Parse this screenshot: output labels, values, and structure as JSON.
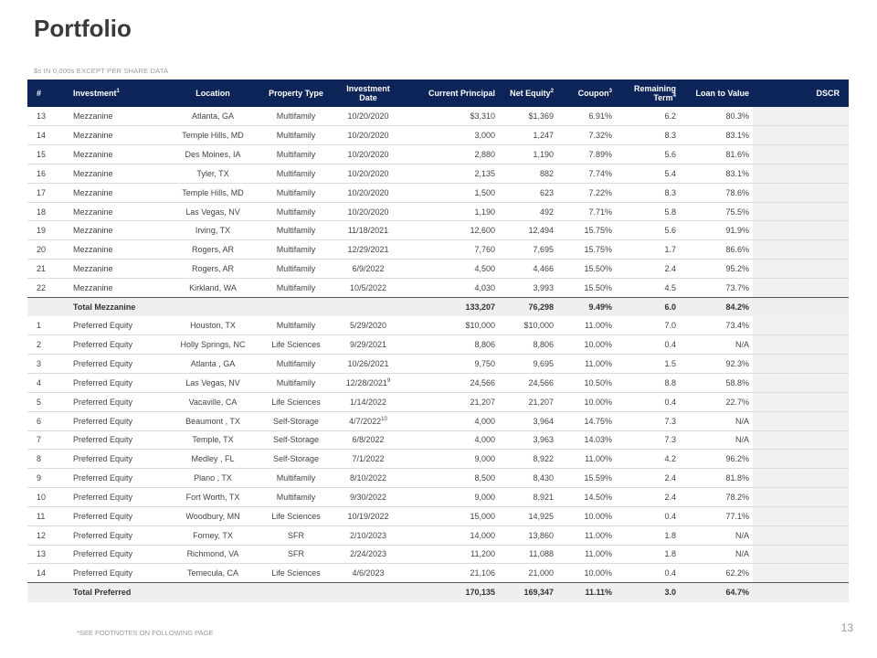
{
  "title": "Portfolio",
  "subtitle": "$s IN 0,000s EXCEPT PER SHARE DATA",
  "headers": {
    "num": "#",
    "investment": "Investment",
    "investment_sup": "1",
    "location": "Location",
    "property_type": "Property Type",
    "investment_date_l1": "Investment",
    "investment_date_l2": "Date",
    "current_principal": "Current Principal",
    "net_equity": "Net Equity",
    "net_equity_sup": "2",
    "coupon": "Coupon",
    "coupon_sup": "3",
    "remaining_term_l1": "Remaining",
    "remaining_term_l2": "Term",
    "remaining_term_sup": "4",
    "loan_to_value": "Loan to Value",
    "dscr": "DSCR"
  },
  "mezzanine_rows": [
    {
      "num": "13",
      "investment": "Mezzanine",
      "location": "Atlanta, GA",
      "type": "Multifamily",
      "date": "10/20/2020",
      "date_sup": "",
      "principal": "$3,310",
      "equity": "$1,369",
      "coupon": "6.91%",
      "term": "6.2",
      "ltv": "80.3%"
    },
    {
      "num": "14",
      "investment": "Mezzanine",
      "location": "Temple Hills, MD",
      "type": "Multifamily",
      "date": "10/20/2020",
      "date_sup": "",
      "principal": "3,000",
      "equity": "1,247",
      "coupon": "7.32%",
      "term": "8.3",
      "ltv": "83.1%"
    },
    {
      "num": "15",
      "investment": "Mezzanine",
      "location": "Des Moines, IA",
      "type": "Multifamily",
      "date": "10/20/2020",
      "date_sup": "",
      "principal": "2,880",
      "equity": "1,190",
      "coupon": "7.89%",
      "term": "5.6",
      "ltv": "81.6%"
    },
    {
      "num": "16",
      "investment": "Mezzanine",
      "location": "Tyler, TX",
      "type": "Multifamily",
      "date": "10/20/2020",
      "date_sup": "",
      "principal": "2,135",
      "equity": "882",
      "coupon": "7.74%",
      "term": "5.4",
      "ltv": "83.1%"
    },
    {
      "num": "17",
      "investment": "Mezzanine",
      "location": "Temple Hills, MD",
      "type": "Multifamily",
      "date": "10/20/2020",
      "date_sup": "",
      "principal": "1,500",
      "equity": "623",
      "coupon": "7.22%",
      "term": "8.3",
      "ltv": "78.6%"
    },
    {
      "num": "18",
      "investment": "Mezzanine",
      "location": "Las Vegas, NV",
      "type": "Multifamily",
      "date": "10/20/2020",
      "date_sup": "",
      "principal": "1,190",
      "equity": "492",
      "coupon": "7.71%",
      "term": "5.8",
      "ltv": "75.5%"
    },
    {
      "num": "19",
      "investment": "Mezzanine",
      "location": "Irving, TX",
      "type": "Multifamily",
      "date": "11/18/2021",
      "date_sup": "",
      "principal": "12,600",
      "equity": "12,494",
      "coupon": "15.75%",
      "term": "5.6",
      "ltv": "91.9%"
    },
    {
      "num": "20",
      "investment": "Mezzanine",
      "location": "Rogers, AR",
      "type": "Multifamily",
      "date": "12/29/2021",
      "date_sup": "",
      "principal": "7,760",
      "equity": "7,695",
      "coupon": "15.75%",
      "term": "1.7",
      "ltv": "86.6%"
    },
    {
      "num": "21",
      "investment": "Mezzanine",
      "location": "Rogers, AR",
      "type": "Multifamily",
      "date": "6/9/2022",
      "date_sup": "",
      "principal": "4,500",
      "equity": "4,466",
      "coupon": "15.50%",
      "term": "2.4",
      "ltv": "95.2%"
    },
    {
      "num": "22",
      "investment": "Mezzanine",
      "location": "Kirkland, WA",
      "type": "Multifamily",
      "date": "10/5/2022",
      "date_sup": "",
      "principal": "4,030",
      "equity": "3,993",
      "coupon": "15.50%",
      "term": "4.5",
      "ltv": "73.7%"
    }
  ],
  "total_mezzanine": {
    "label": "Total Mezzanine",
    "principal": "133,207",
    "equity": "76,298",
    "coupon": "9.49%",
    "term": "6.0",
    "ltv": "84.2%"
  },
  "preferred_rows": [
    {
      "num": "1",
      "investment": "Preferred Equity",
      "location": "Houston, TX",
      "type": "Multifamily",
      "date": "5/29/2020",
      "date_sup": "",
      "principal": "$10,000",
      "equity": "$10,000",
      "coupon": "11.00%",
      "term": "7.0",
      "ltv": "73.4%"
    },
    {
      "num": "2",
      "investment": "Preferred Equity",
      "location": "Holly Springs, NC",
      "type": "Life Sciences",
      "date": "9/29/2021",
      "date_sup": "",
      "principal": "8,806",
      "equity": "8,806",
      "coupon": "10.00%",
      "term": "0.4",
      "ltv": "N/A"
    },
    {
      "num": "3",
      "investment": "Preferred Equity",
      "location": "Atlanta , GA",
      "type": "Multifamily",
      "date": "10/26/2021",
      "date_sup": "",
      "principal": "9,750",
      "equity": "9,695",
      "coupon": "11.00%",
      "term": "1.5",
      "ltv": "92.3%"
    },
    {
      "num": "4",
      "investment": "Preferred Equity",
      "location": "Las Vegas, NV",
      "type": "Multifamily",
      "date": "12/28/2021",
      "date_sup": "9",
      "principal": "24,566",
      "equity": "24,566",
      "coupon": "10.50%",
      "term": "8.8",
      "ltv": "58.8%"
    },
    {
      "num": "5",
      "investment": "Preferred Equity",
      "location": "Vacaville, CA",
      "type": "Life Sciences",
      "date": "1/14/2022",
      "date_sup": "",
      "principal": "21,207",
      "equity": "21,207",
      "coupon": "10.00%",
      "term": "0.4",
      "ltv": "22.7%"
    },
    {
      "num": "6",
      "investment": "Preferred Equity",
      "location": "Beaumont , TX",
      "type": "Self-Storage",
      "date": "4/7/2022",
      "date_sup": "10",
      "principal": "4,000",
      "equity": "3,964",
      "coupon": "14.75%",
      "term": "7.3",
      "ltv": "N/A"
    },
    {
      "num": "7",
      "investment": "Preferred Equity",
      "location": "Temple, TX",
      "type": "Self-Storage",
      "date": "6/8/2022",
      "date_sup": "",
      "principal": "4,000",
      "equity": "3,963",
      "coupon": "14.03%",
      "term": "7.3",
      "ltv": "N/A"
    },
    {
      "num": "8",
      "investment": "Preferred Equity",
      "location": "Medley , FL",
      "type": "Self-Storage",
      "date": "7/1/2022",
      "date_sup": "",
      "principal": "9,000",
      "equity": "8,922",
      "coupon": "11.00%",
      "term": "4.2",
      "ltv": "96.2%"
    },
    {
      "num": "9",
      "investment": "Preferred Equity",
      "location": "Plano , TX",
      "type": "Multifamily",
      "date": "8/10/2022",
      "date_sup": "",
      "principal": "8,500",
      "equity": "8,430",
      "coupon": "15.59%",
      "term": "2.4",
      "ltv": "81.8%"
    },
    {
      "num": "10",
      "investment": "Preferred Equity",
      "location": "Fort Worth, TX",
      "type": "Multifamily",
      "date": "9/30/2022",
      "date_sup": "",
      "principal": "9,000",
      "equity": "8,921",
      "coupon": "14.50%",
      "term": "2.4",
      "ltv": "78.2%"
    },
    {
      "num": "11",
      "investment": "Preferred Equity",
      "location": "Woodbury, MN",
      "type": "Life Sciences",
      "date": "10/19/2022",
      "date_sup": "",
      "principal": "15,000",
      "equity": "14,925",
      "coupon": "10.00%",
      "term": "0.4",
      "ltv": "77.1%"
    },
    {
      "num": "12",
      "investment": "Preferred Equity",
      "location": "Forney, TX",
      "type": "SFR",
      "date": "2/10/2023",
      "date_sup": "",
      "principal": "14,000",
      "equity": "13,860",
      "coupon": "11.00%",
      "term": "1.8",
      "ltv": "N/A"
    },
    {
      "num": "13",
      "investment": "Preferred Equity",
      "location": "Richmond, VA",
      "type": "SFR",
      "date": "2/24/2023",
      "date_sup": "",
      "principal": "11,200",
      "equity": "11,088",
      "coupon": "11.00%",
      "term": "1.8",
      "ltv": "N/A"
    },
    {
      "num": "14",
      "investment": "Preferred Equity",
      "location": "Temecula, CA",
      "type": "Life Sciences",
      "date": "4/6/2023",
      "date_sup": "",
      "principal": "21,106",
      "equity": "21,000",
      "coupon": "10.00%",
      "term": "0.4",
      "ltv": "62.2%"
    }
  ],
  "total_preferred": {
    "label": "Total Preferred",
    "principal": "170,135",
    "equity": "169,347",
    "coupon": "11.11%",
    "term": "3.0",
    "ltv": "64.7%"
  },
  "footnote": "*SEE FOOTNOTES ON FOLLOWING PAGE",
  "page_number": "13",
  "colors": {
    "header_bg": "#0d2458",
    "header_text": "#ffffff",
    "total_bg": "#efefef",
    "dscr_bg": "#f0f0f0"
  }
}
